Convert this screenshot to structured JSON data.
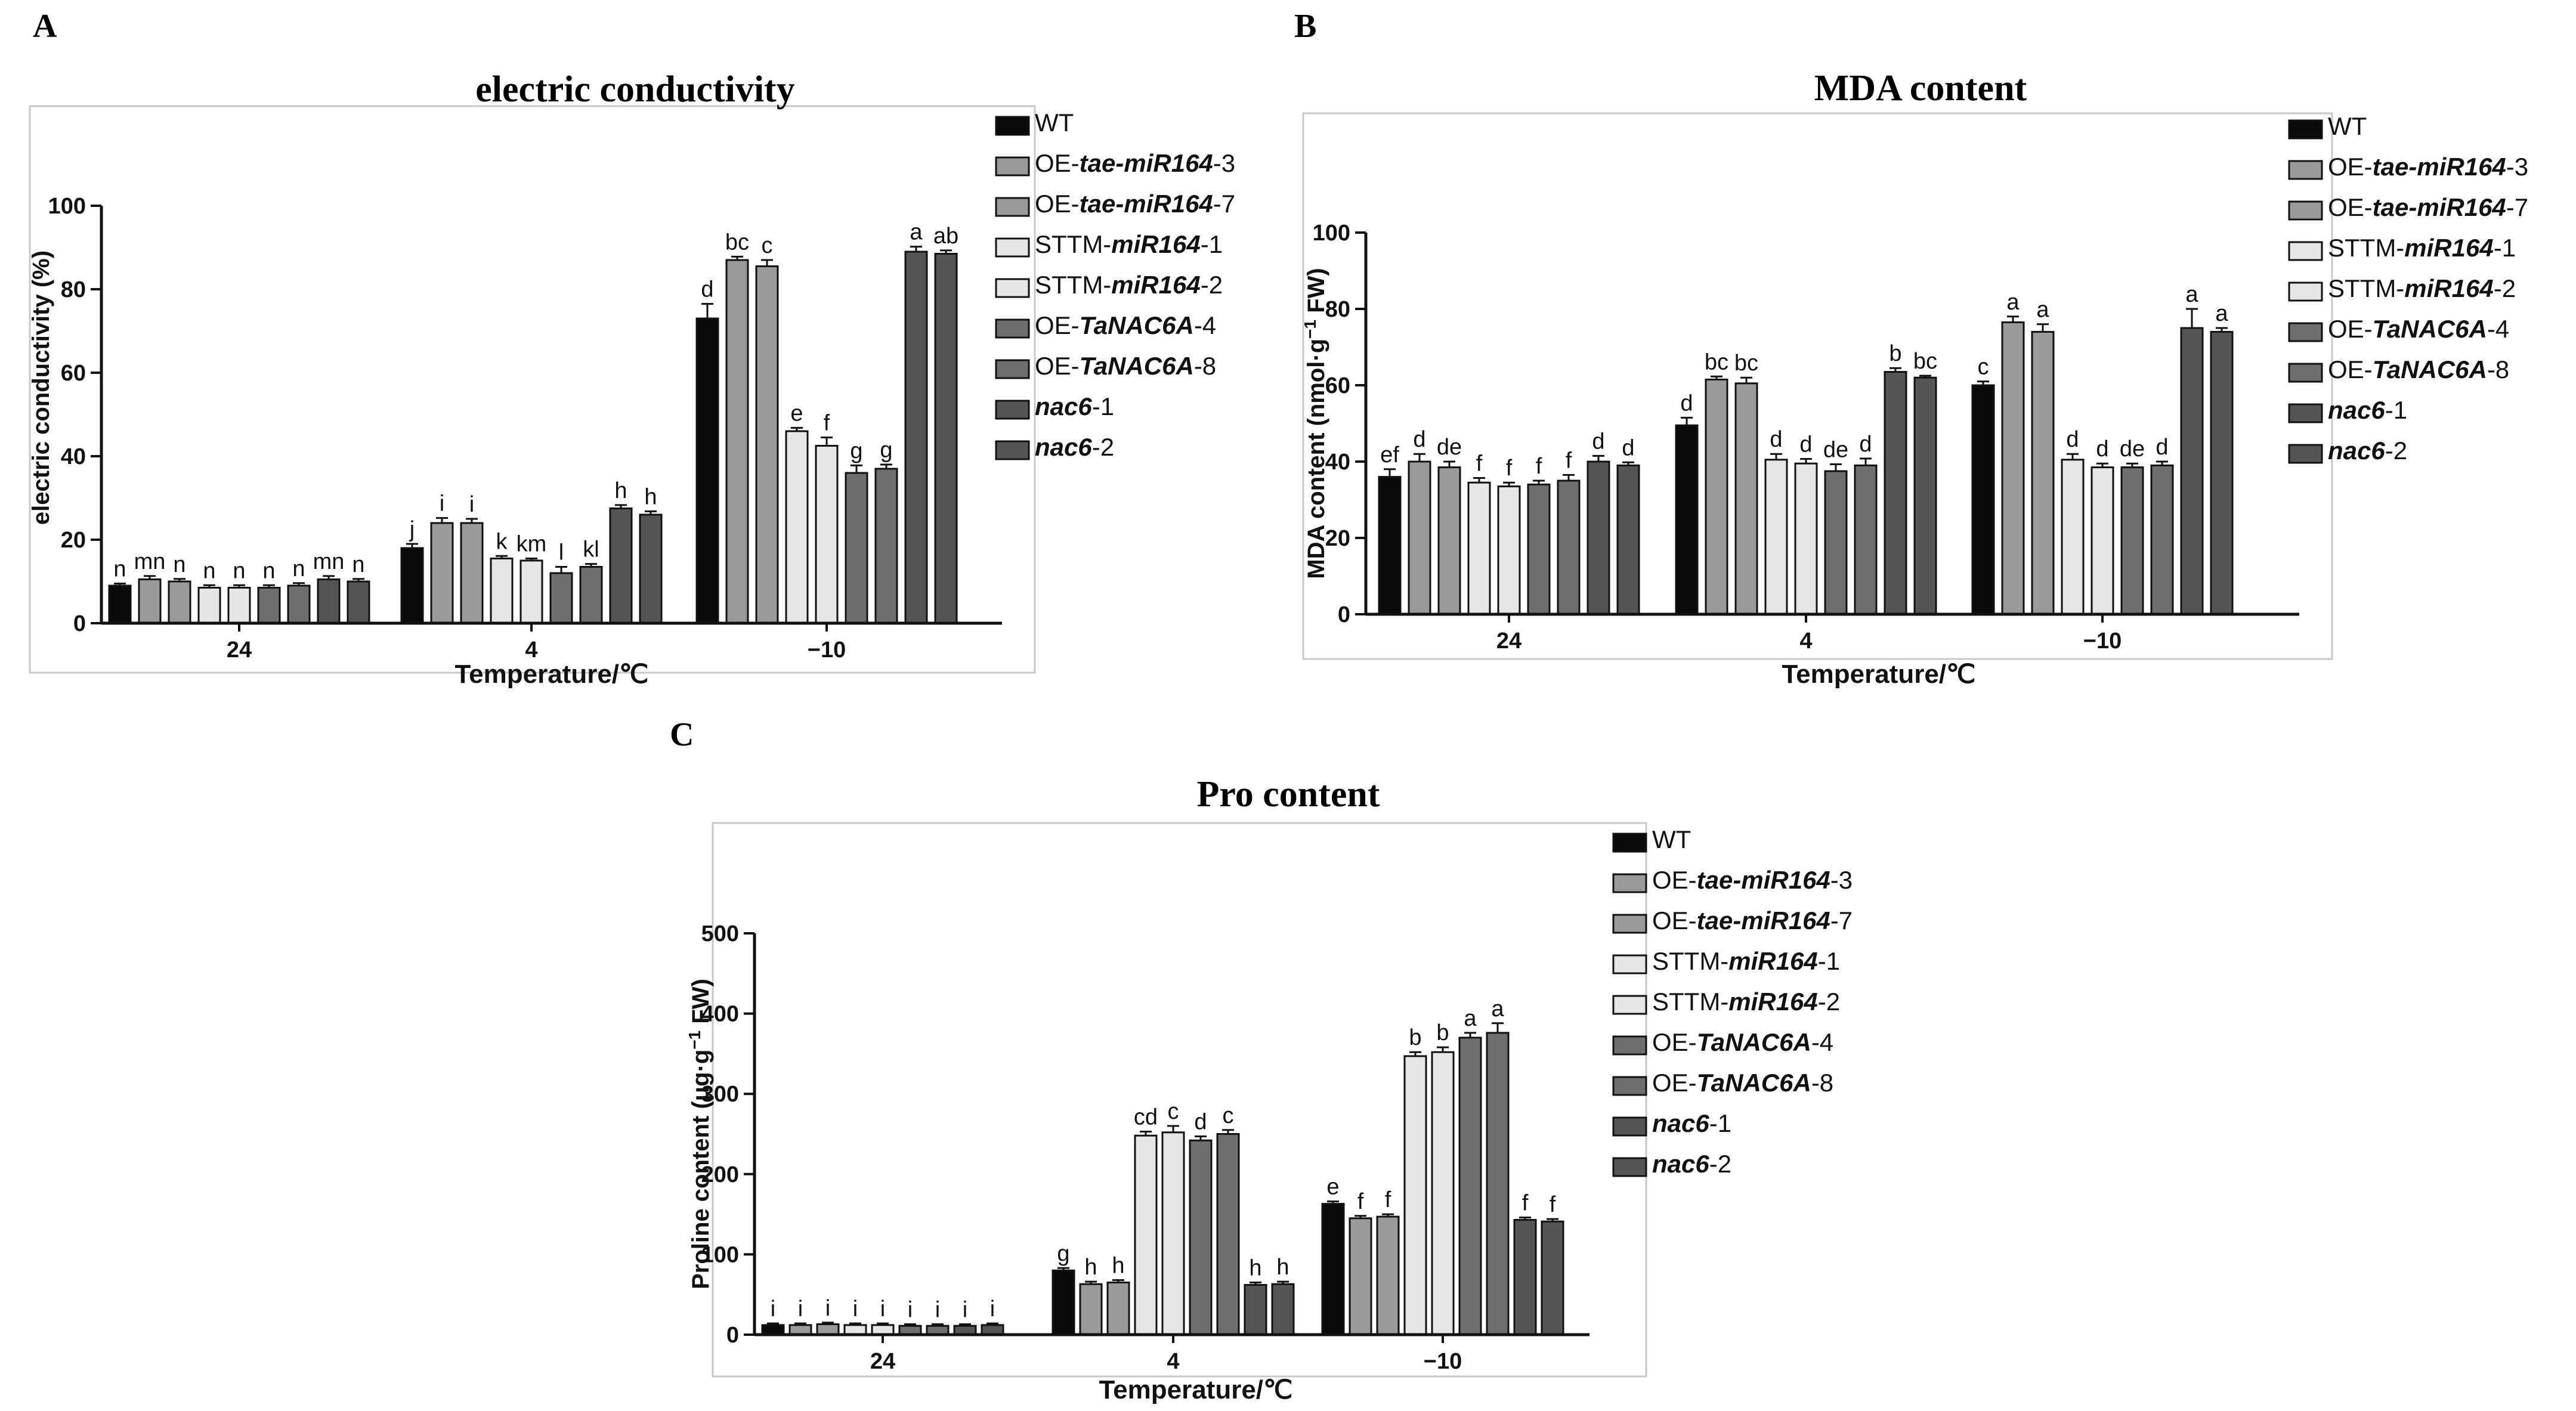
{
  "legend": [
    {
      "prefix": "WT",
      "italic": "",
      "suffix": "",
      "color": "#0a0a0a"
    },
    {
      "prefix": "OE-",
      "italic": "tae-miR164",
      "suffix": "-3",
      "color": "#9a9a9a"
    },
    {
      "prefix": "OE-",
      "italic": "tae-miR164",
      "suffix": "-7",
      "color": "#9a9a9a"
    },
    {
      "prefix": "STTM-",
      "italic": "miR164",
      "suffix": "-1",
      "color": "#e6e6e6"
    },
    {
      "prefix": "STTM-",
      "italic": "miR164",
      "suffix": "-2",
      "color": "#e6e6e6"
    },
    {
      "prefix": "OE-",
      "italic": "TaNAC6A",
      "suffix": "-4",
      "color": "#6e6e6e"
    },
    {
      "prefix": "OE-",
      "italic": "TaNAC6A",
      "suffix": "-8",
      "color": "#6e6e6e"
    },
    {
      "prefix": "",
      "italic": "nac6",
      "suffix": "-1",
      "color": "#555555"
    },
    {
      "prefix": "",
      "italic": "nac6",
      "suffix": "-2",
      "color": "#555555"
    }
  ],
  "chart_data": [
    {
      "panel": "A",
      "type": "bar",
      "title": "electric conductivity",
      "xlabel": "Temperature/℃",
      "ylabel": "electric conductivity (%)",
      "ylim": [
        0,
        100
      ],
      "yticks": [
        0,
        20,
        40,
        60,
        80,
        100
      ],
      "categories": [
        "24",
        "4",
        "−10"
      ],
      "series": [
        {
          "name": "WT",
          "values": [
            9,
            18,
            73
          ],
          "err": [
            0.5,
            1,
            3.5
          ],
          "letters": [
            "n",
            "j",
            "d"
          ]
        },
        {
          "name": "OE-tae-miR164-3",
          "values": [
            10.5,
            24,
            87
          ],
          "err": [
            0.8,
            1.2,
            0.8
          ],
          "letters": [
            "mn",
            "i",
            "bc"
          ]
        },
        {
          "name": "OE-tae-miR164-7",
          "values": [
            10,
            24,
            85.5
          ],
          "err": [
            0.6,
            1,
            1.5
          ],
          "letters": [
            "n",
            "i",
            "c"
          ]
        },
        {
          "name": "STTM-miR164-1",
          "values": [
            8.5,
            15.5,
            46
          ],
          "err": [
            0.6,
            0.6,
            0.8
          ],
          "letters": [
            "n",
            "k",
            "e"
          ]
        },
        {
          "name": "STTM-miR164-2",
          "values": [
            8.5,
            15,
            42.5
          ],
          "err": [
            0.6,
            0.5,
            2
          ],
          "letters": [
            "n",
            "km",
            "f"
          ]
        },
        {
          "name": "OE-TaNAC6A-4",
          "values": [
            8.5,
            12,
            36
          ],
          "err": [
            0.6,
            1.5,
            1.8
          ],
          "letters": [
            "n",
            "l",
            "g"
          ]
        },
        {
          "name": "OE-TaNAC6A-8",
          "values": [
            9,
            13.5,
            37
          ],
          "err": [
            0.6,
            0.7,
            1
          ],
          "letters": [
            "n",
            "kl",
            "g"
          ]
        },
        {
          "name": "nac6-1",
          "values": [
            10.5,
            27.5,
            89
          ],
          "err": [
            0.8,
            0.8,
            1.2
          ],
          "letters": [
            "mn",
            "h",
            "a"
          ]
        },
        {
          "name": "nac6-2",
          "values": [
            10,
            26,
            88.5
          ],
          "err": [
            0.6,
            0.8,
            0.8
          ],
          "letters": [
            "n",
            "h",
            "ab"
          ]
        }
      ]
    },
    {
      "panel": "B",
      "type": "bar",
      "title": "MDA content",
      "xlabel": "Temperature/℃",
      "ylabel_pre": "MDA content  (nmol·g",
      "ylabel_sup": "−1",
      "ylabel_post": " FW)",
      "ylim": [
        0,
        100
      ],
      "yticks": [
        0,
        20,
        40,
        60,
        80,
        100
      ],
      "categories": [
        "24",
        "4",
        "−10"
      ],
      "series": [
        {
          "name": "WT",
          "values": [
            36,
            49.5,
            60
          ],
          "err": [
            2,
            2,
            1
          ],
          "letters": [
            "ef",
            "d",
            "c"
          ]
        },
        {
          "name": "OE-tae-miR164-3",
          "values": [
            40,
            61.5,
            76.5
          ],
          "err": [
            2,
            0.8,
            1.5
          ],
          "letters": [
            "d",
            "bc",
            "a"
          ]
        },
        {
          "name": "OE-tae-miR164-7",
          "values": [
            38.5,
            60.5,
            74
          ],
          "err": [
            1.5,
            1.5,
            2
          ],
          "letters": [
            "de",
            "bc",
            "a"
          ]
        },
        {
          "name": "STTM-miR164-1",
          "values": [
            34.5,
            40.5,
            40.5
          ],
          "err": [
            1.2,
            1.5,
            1.5
          ],
          "letters": [
            "f",
            "d",
            "d"
          ]
        },
        {
          "name": "STTM-miR164-2",
          "values": [
            33.5,
            39.5,
            38.5
          ],
          "err": [
            1,
            1.2,
            1
          ],
          "letters": [
            "f",
            "d",
            "d"
          ]
        },
        {
          "name": "OE-TaNAC6A-4",
          "values": [
            34,
            37.5,
            38.5
          ],
          "err": [
            1,
            1.8,
            1
          ],
          "letters": [
            "f",
            "de",
            "de"
          ]
        },
        {
          "name": "OE-TaNAC6A-8",
          "values": [
            35,
            39,
            39
          ],
          "err": [
            1.5,
            1.8,
            1
          ],
          "letters": [
            "f",
            "d",
            "d"
          ]
        },
        {
          "name": "nac6-1",
          "values": [
            40,
            63.5,
            75
          ],
          "err": [
            1.5,
            1,
            5
          ],
          "letters": [
            "d",
            "b",
            "a"
          ]
        },
        {
          "name": "nac6-2",
          "values": [
            39,
            62,
            74
          ],
          "err": [
            0.8,
            0.5,
            1
          ],
          "letters": [
            "d",
            "bc",
            "a"
          ]
        }
      ]
    },
    {
      "panel": "C",
      "type": "bar",
      "title": "Pro content",
      "xlabel": "Temperature/℃",
      "ylabel_pre": "Proline content  (μg·g",
      "ylabel_sup": "−1",
      "ylabel_post": " FW)",
      "ylim": [
        0,
        500
      ],
      "yticks": [
        0,
        100,
        200,
        300,
        400,
        500
      ],
      "categories": [
        "24",
        "4",
        "−10"
      ],
      "series": [
        {
          "name": "WT",
          "values": [
            12,
            80,
            163
          ],
          "err": [
            2,
            3,
            3
          ],
          "letters": [
            "i",
            "g",
            "e"
          ]
        },
        {
          "name": "OE-tae-miR164-3",
          "values": [
            12,
            63,
            145
          ],
          "err": [
            2,
            3,
            3
          ],
          "letters": [
            "i",
            "h",
            "f"
          ]
        },
        {
          "name": "OE-tae-miR164-7",
          "values": [
            13,
            65,
            147
          ],
          "err": [
            2,
            3,
            3
          ],
          "letters": [
            "i",
            "h",
            "f"
          ]
        },
        {
          "name": "STTM-miR164-1",
          "values": [
            12,
            248,
            347
          ],
          "err": [
            2,
            5,
            5
          ],
          "letters": [
            "i",
            "cd",
            "b"
          ]
        },
        {
          "name": "STTM-miR164-2",
          "values": [
            12,
            252,
            352
          ],
          "err": [
            2,
            8,
            6
          ],
          "letters": [
            "i",
            "c",
            "b"
          ]
        },
        {
          "name": "OE-TaNAC6A-4",
          "values": [
            11,
            242,
            370
          ],
          "err": [
            2,
            5,
            6
          ],
          "letters": [
            "i",
            "d",
            "a"
          ]
        },
        {
          "name": "OE-TaNAC6A-8",
          "values": [
            11,
            250,
            376
          ],
          "err": [
            2,
            5,
            12
          ],
          "letters": [
            "i",
            "c",
            "a"
          ]
        },
        {
          "name": "nac6-1",
          "values": [
            11,
            62,
            143
          ],
          "err": [
            2,
            3,
            3
          ],
          "letters": [
            "i",
            "h",
            "f"
          ]
        },
        {
          "name": "nac6-2",
          "values": [
            12,
            63,
            141
          ],
          "err": [
            2,
            3,
            3
          ],
          "letters": [
            "i",
            "h",
            "f"
          ]
        }
      ]
    }
  ]
}
